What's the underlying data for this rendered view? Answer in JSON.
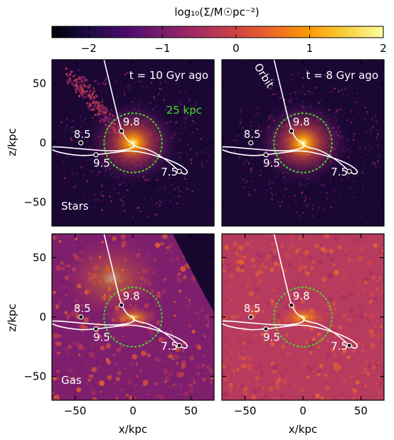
{
  "colorbar": {
    "label": "log₁₀(Σ/M☉pc⁻²)",
    "ticks": [
      -2,
      -1,
      0,
      1,
      2
    ],
    "tick_labels": [
      "−2",
      "−1",
      "0",
      "1",
      "2"
    ],
    "range": [
      -2.5,
      2
    ],
    "colormap": [
      "#000004",
      "#1b0c41",
      "#4a0c6b",
      "#781c6d",
      "#a52c60",
      "#cf4446",
      "#ed6925",
      "#fb9b06",
      "#f7d13d",
      "#fcffa4"
    ]
  },
  "axes": {
    "xlabel": "x/kpc",
    "ylabel": "z/kpc",
    "xlim": [
      -70,
      70
    ],
    "ylim": [
      -70,
      70
    ],
    "xticks": [
      -50,
      0,
      50
    ],
    "xtick_labels": [
      "−50",
      "0",
      "50"
    ],
    "yticks": [
      -50,
      0,
      50
    ],
    "ytick_labels": [
      "−50",
      "0",
      "50"
    ]
  },
  "panels": [
    {
      "id": "stars-10",
      "time_label": "t = 10 Gyr ago",
      "species_label": "Stars",
      "circle_label": "25 kpc",
      "orbit_label": "",
      "component": "stars",
      "bg": "#1a0733"
    },
    {
      "id": "stars-8",
      "time_label": "t = 8 Gyr ago",
      "species_label": "",
      "circle_label": "",
      "orbit_label": "Orbit",
      "component": "stars",
      "bg": "#1a0733"
    },
    {
      "id": "gas-10",
      "time_label": "",
      "species_label": "Gas",
      "circle_label": "",
      "orbit_label": "",
      "component": "gas",
      "bg": "#7e1f6e"
    },
    {
      "id": "gas-8",
      "time_label": "",
      "species_label": "",
      "circle_label": "",
      "orbit_label": "",
      "component": "gas",
      "bg": "#b73b5e"
    }
  ],
  "chart_data": {
    "type": "heatmap",
    "title": "",
    "xlabel": "x/kpc",
    "ylabel": "z/kpc",
    "xlim": [
      -70,
      70
    ],
    "ylim": [
      -70,
      70
    ],
    "circle_radius_kpc": 25,
    "circle_color": "#44dd22",
    "orbit_color": "#ffffff",
    "orbit": [
      {
        "x": -25,
        "z": 70
      },
      {
        "x": -20,
        "z": 50
      },
      {
        "x": -14,
        "z": 25
      },
      {
        "x": -10,
        "z": 10
      },
      {
        "x": -5,
        "z": 2
      },
      {
        "x": 0,
        "z": 0
      },
      {
        "x": 2,
        "z": -3
      },
      {
        "x": -5,
        "z": -6
      },
      {
        "x": -20,
        "z": -7
      },
      {
        "x": -45,
        "z": -5
      },
      {
        "x": -68,
        "z": -3
      },
      {
        "x": -73,
        "z": -4
      },
      {
        "x": -65,
        "z": -8
      },
      {
        "x": -45,
        "z": -11
      },
      {
        "x": -32,
        "z": -10
      },
      {
        "x": -15,
        "z": -8
      },
      {
        "x": 0,
        "z": -6
      },
      {
        "x": 25,
        "z": -12
      },
      {
        "x": 40,
        "z": -18
      },
      {
        "x": 48,
        "z": -24
      },
      {
        "x": 45,
        "z": -27
      },
      {
        "x": 40,
        "z": -24
      },
      {
        "x": 30,
        "z": -15
      },
      {
        "x": 15,
        "z": -6
      },
      {
        "x": 5,
        "z": -4
      },
      {
        "x": 0,
        "z": -2
      }
    ],
    "time_markers": [
      {
        "label": "9.8",
        "x": -10,
        "z": 10
      },
      {
        "label": "8.5",
        "x": -45,
        "z": 0
      },
      {
        "label": "9.5",
        "x": -32,
        "z": -10
      },
      {
        "label": "7.5",
        "x": 40,
        "z": -24
      }
    ]
  }
}
